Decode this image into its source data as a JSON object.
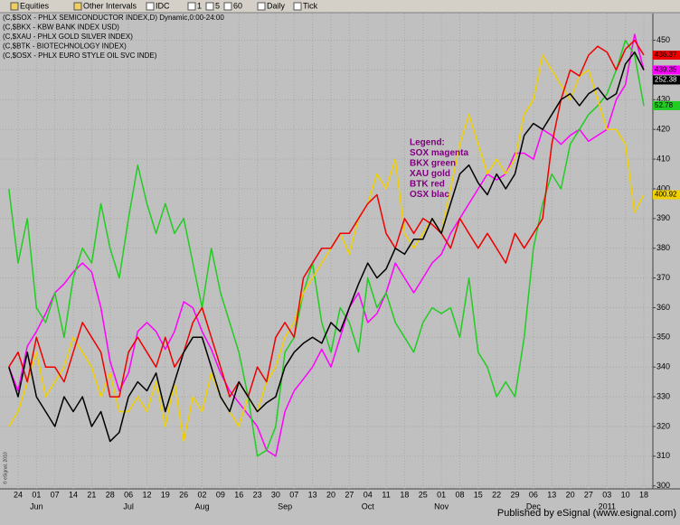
{
  "toolbar": [
    "Equities",
    "Other Intervals",
    "IDC",
    "1",
    "5",
    "60",
    "Daily",
    "Tick"
  ],
  "footer": "Published by eSignal (www.esignal.com)",
  "copyright": "© eSignal, 2010",
  "chart_data": {
    "type": "line",
    "annotation": [
      "Legend:",
      "SOX magenta",
      "BKX green",
      "XAU gold",
      "BTK red",
      "OSX blac"
    ],
    "categories": [
      null,
      "24",
      null,
      "01",
      null,
      "07",
      null,
      "14",
      null,
      "21",
      null,
      "28",
      null,
      "06",
      null,
      "12",
      null,
      "19",
      null,
      "26",
      null,
      "02",
      null,
      "09",
      null,
      "16",
      null,
      "23",
      null,
      "30",
      null,
      "07",
      null,
      "13",
      null,
      "20",
      null,
      "27",
      null,
      "04",
      null,
      "11",
      null,
      "18",
      null,
      "25",
      null,
      "01",
      null,
      "08",
      null,
      "15",
      null,
      "22",
      null,
      "29",
      null,
      "06",
      null,
      "13",
      null,
      "20",
      null,
      "27",
      null,
      "03",
      null,
      "10",
      null,
      "18"
    ],
    "months": [
      null,
      null,
      null,
      "Jun",
      null,
      null,
      null,
      null,
      null,
      null,
      null,
      null,
      null,
      "Jul",
      null,
      null,
      null,
      null,
      null,
      null,
      null,
      "Aug",
      null,
      null,
      null,
      null,
      null,
      null,
      null,
      null,
      "Sep",
      null,
      null,
      null,
      null,
      null,
      null,
      null,
      null,
      "Oct",
      null,
      null,
      null,
      null,
      null,
      null,
      null,
      "Nov",
      null,
      null,
      null,
      null,
      null,
      null,
      null,
      null,
      null,
      "Dec",
      null,
      null,
      null,
      null,
      null,
      null,
      null,
      "2011",
      null,
      null,
      null,
      null
    ],
    "ylim": [
      299,
      459
    ],
    "yticks": [
      300,
      310,
      320,
      330,
      340,
      350,
      360,
      370,
      380,
      390,
      400,
      410,
      420,
      430,
      440,
      450
    ],
    "grid": true,
    "series": [
      {
        "name": "(C,$SOX - PHLX SEMICONDUCTOR INDEX,D) Dynamic,0:00-24:00",
        "color": "#ff00ff",
        "last_label": "439.35",
        "values": [
          340,
          332,
          347,
          352,
          358,
          365,
          368,
          372,
          375,
          372,
          360,
          342,
          332,
          338,
          352,
          355,
          352,
          346,
          352,
          362,
          360,
          352,
          346,
          338,
          332,
          328,
          324,
          320,
          312,
          310,
          325,
          332,
          336,
          340,
          346,
          340,
          350,
          360,
          365,
          355,
          358,
          365,
          375,
          370,
          365,
          370,
          375,
          378,
          385,
          390,
          395,
          400,
          405,
          403,
          405,
          412,
          412,
          410,
          420,
          418,
          415,
          418,
          420,
          416,
          418,
          420,
          430,
          435,
          452,
          440
        ]
      },
      {
        "name": "(C,$BKX - KBW BANK INDEX USD)",
        "color": "#22cc22",
        "last_label": "52.78",
        "values": [
          400,
          375,
          390,
          360,
          355,
          365,
          350,
          370,
          380,
          375,
          395,
          380,
          370,
          390,
          408,
          395,
          385,
          395,
          385,
          390,
          375,
          360,
          380,
          365,
          355,
          345,
          330,
          310,
          312,
          320,
          345,
          350,
          365,
          375,
          355,
          345,
          360,
          355,
          345,
          370,
          360,
          365,
          355,
          350,
          345,
          355,
          360,
          358,
          360,
          350,
          370,
          345,
          340,
          330,
          335,
          330,
          350,
          380,
          395,
          405,
          400,
          415,
          420,
          425,
          428,
          432,
          440,
          450,
          445,
          428
        ]
      },
      {
        "name": "(C,$XAU - PHLX GOLD SILVER INDEX)",
        "color": "#f0d000",
        "last_label": "400.92",
        "values": [
          320,
          325,
          335,
          345,
          330,
          335,
          340,
          350,
          345,
          340,
          330,
          338,
          325,
          325,
          330,
          325,
          335,
          320,
          335,
          315,
          330,
          325,
          338,
          330,
          325,
          320,
          330,
          325,
          335,
          340,
          350,
          355,
          365,
          370,
          375,
          380,
          385,
          378,
          390,
          395,
          405,
          400,
          410,
          385,
          380,
          385,
          390,
          385,
          400,
          415,
          425,
          415,
          405,
          410,
          405,
          410,
          425,
          430,
          445,
          440,
          435,
          430,
          438,
          440,
          430,
          420,
          420,
          415,
          392,
          398
        ]
      },
      {
        "name": "(C,$BTK - BIOTECHNOLOGY INDEX)",
        "color": "#ee0000",
        "last_label": "436.37",
        "values": [
          340,
          345,
          335,
          350,
          340,
          340,
          335,
          345,
          355,
          350,
          345,
          330,
          330,
          345,
          350,
          345,
          340,
          350,
          340,
          345,
          355,
          360,
          350,
          340,
          330,
          335,
          330,
          340,
          335,
          350,
          355,
          350,
          370,
          375,
          380,
          380,
          385,
          385,
          390,
          395,
          398,
          385,
          380,
          390,
          385,
          390,
          388,
          385,
          380,
          390,
          385,
          380,
          385,
          380,
          375,
          385,
          380,
          385,
          390,
          415,
          430,
          440,
          438,
          445,
          448,
          446,
          440,
          447,
          450,
          445
        ]
      },
      {
        "name": "(C,$OSX - PHLX EURO STYLE OIL SVC INDE)",
        "color": "#000000",
        "last_label": "252.38",
        "values": [
          340,
          330,
          345,
          330,
          325,
          320,
          330,
          325,
          330,
          320,
          325,
          315,
          318,
          330,
          335,
          332,
          338,
          325,
          335,
          345,
          350,
          350,
          340,
          330,
          325,
          335,
          330,
          325,
          328,
          330,
          340,
          345,
          348,
          350,
          348,
          355,
          352,
          360,
          368,
          375,
          370,
          373,
          380,
          378,
          383,
          383,
          390,
          385,
          395,
          405,
          408,
          402,
          398,
          405,
          400,
          405,
          418,
          422,
          420,
          425,
          430,
          432,
          428,
          432,
          434,
          430,
          432,
          442,
          446,
          440
        ]
      }
    ]
  }
}
